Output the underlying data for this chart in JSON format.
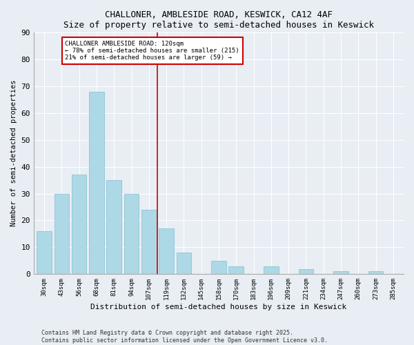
{
  "title": "CHALLONER, AMBLESIDE ROAD, KESWICK, CA12 4AF",
  "subtitle": "Size of property relative to semi-detached houses in Keswick",
  "xlabel": "Distribution of semi-detached houses by size in Keswick",
  "ylabel": "Number of semi-detached properties",
  "categories": [
    "30sqm",
    "43sqm",
    "56sqm",
    "68sqm",
    "81sqm",
    "94sqm",
    "107sqm",
    "119sqm",
    "132sqm",
    "145sqm",
    "158sqm",
    "170sqm",
    "183sqm",
    "196sqm",
    "209sqm",
    "221sqm",
    "234sqm",
    "247sqm",
    "260sqm",
    "273sqm",
    "285sqm"
  ],
  "values": [
    16,
    30,
    37,
    68,
    35,
    30,
    24,
    17,
    8,
    0,
    5,
    3,
    0,
    3,
    0,
    2,
    0,
    1,
    0,
    1,
    0
  ],
  "bar_color": "#add8e6",
  "bar_edge_color": "#85bcd0",
  "property_sqm": 120,
  "annotation_title": "CHALLONER AMBLESIDE ROAD: 120sqm",
  "annotation_line1": "← 78% of semi-detached houses are smaller (215)",
  "annotation_line2": "21% of semi-detached houses are larger (59) →",
  "annotation_box_color": "#ffffff",
  "annotation_box_edge_color": "#cc0000",
  "line_color": "#cc0000",
  "ylim": [
    0,
    90
  ],
  "yticks": [
    0,
    10,
    20,
    30,
    40,
    50,
    60,
    70,
    80,
    90
  ],
  "background_color": "#e8eef4",
  "grid_color": "#ffffff",
  "footer1": "Contains HM Land Registry data © Crown copyright and database right 2025.",
  "footer2": "Contains public sector information licensed under the Open Government Licence v3.0."
}
